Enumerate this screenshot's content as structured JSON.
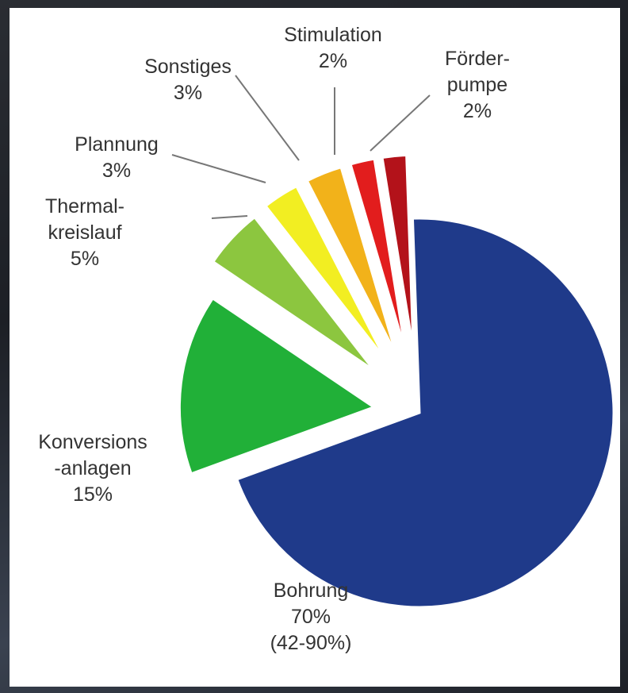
{
  "chart_data": {
    "type": "pie",
    "slices": [
      {
        "name": "Bohrung",
        "value": 70,
        "color": "#1f3a8a",
        "label": [
          "Bohrung",
          "70%",
          "(42-90%)"
        ]
      },
      {
        "name": "Konversions-anlagen",
        "value": 15,
        "color": "#21b038",
        "label": [
          "Konversions",
          "-anlagen",
          "15%"
        ]
      },
      {
        "name": "Thermal-kreislauf",
        "value": 5,
        "color": "#8cc63f",
        "label": [
          "Thermal-",
          "kreislauf",
          "5%"
        ]
      },
      {
        "name": "Plannung",
        "value": 3,
        "color": "#f2ee22",
        "label": [
          "Plannung",
          "3%"
        ]
      },
      {
        "name": "Sonstiges",
        "value": 3,
        "color": "#f2b21a",
        "label": [
          "Sonstiges",
          "3%"
        ]
      },
      {
        "name": "Stimulation",
        "value": 2,
        "color": "#e21d1d",
        "label": [
          "Stimulation",
          "2%"
        ]
      },
      {
        "name": "Förder-pumpe",
        "value": 2,
        "color": "#b3121a",
        "label": [
          "Förder-",
          "pumpe",
          "2%"
        ]
      }
    ]
  }
}
